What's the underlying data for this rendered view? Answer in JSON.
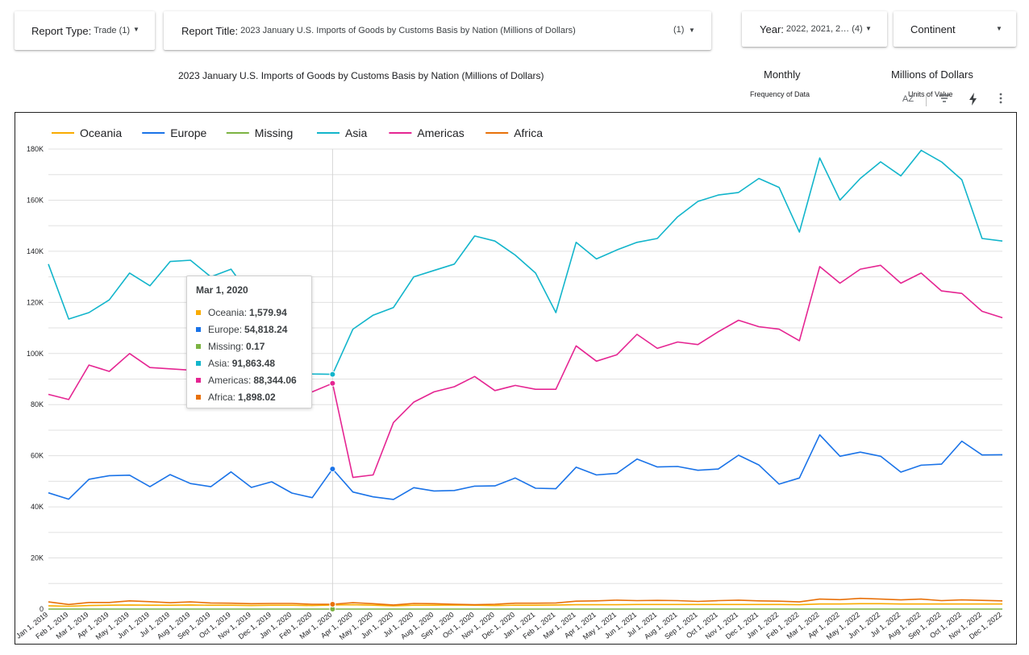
{
  "controls": {
    "report_type": {
      "label": "Report Type:",
      "value": "Trade (1)"
    },
    "report_title": {
      "label": "Report Title:",
      "value": "2023 January U.S. Imports of Goods by Customs Basis by Nation (Millions of Dollars)",
      "count": "(1)"
    },
    "year": {
      "label": "Year:",
      "value": "2022, 2021, 2…",
      "count": "(4)"
    },
    "continent": {
      "label": "Continent"
    }
  },
  "header": {
    "title": "2023 January U.S. Imports of Goods by Customs Basis by Nation (Millions of Dollars)",
    "frequency_value": "Monthly",
    "frequency_label": "Frequency of Data",
    "units_value": "Millions of Dollars",
    "units_label": "Units of Value",
    "sort_icon_text": "AZ"
  },
  "tooltip": {
    "title": "Mar 1, 2020",
    "rows": [
      {
        "name": "Oceania:",
        "value": "1,579.94",
        "color": "#f9ab00"
      },
      {
        "name": "Europe:",
        "value": "54,818.24",
        "color": "#1a73e8"
      },
      {
        "name": "Missing:",
        "value": "0.17",
        "color": "#7cb342"
      },
      {
        "name": "Asia:",
        "value": "91,863.48",
        "color": "#12b5cb"
      },
      {
        "name": "Americas:",
        "value": "88,344.06",
        "color": "#e52592"
      },
      {
        "name": "Africa:",
        "value": "1,898.02",
        "color": "#e8710a"
      }
    ]
  },
  "chart_data": {
    "type": "line",
    "legend_position": "top-left",
    "grid": true,
    "ylim": [
      0,
      180000
    ],
    "yticks": [
      "0",
      "20K",
      "40K",
      "60K",
      "80K",
      "100K",
      "120K",
      "140K",
      "160K",
      "180K"
    ],
    "x": [
      "Jan 1, 2019",
      "Feb 1, 2019",
      "Mar 1, 2019",
      "Apr 1, 2019",
      "May 1, 2019",
      "Jun 1, 2019",
      "Jul 1, 2019",
      "Aug 1, 2019",
      "Sep 1, 2019",
      "Oct 1, 2019",
      "Nov 1, 2019",
      "Dec 1, 2019",
      "Jan 1, 2020",
      "Feb 1, 2020",
      "Mar 1, 2020",
      "Apr 1, 2020",
      "May 1, 2020",
      "Jun 1, 2020",
      "Jul 1, 2020",
      "Aug 1, 2020",
      "Sep 1, 2020",
      "Oct 1, 2020",
      "Nov 1, 2020",
      "Dec 1, 2020",
      "Jan 1, 2021",
      "Feb 1, 2021",
      "Mar 1, 2021",
      "Apr 1, 2021",
      "May 1, 2021",
      "Jun 1, 2021",
      "Jul 1, 2021",
      "Aug 1, 2021",
      "Sep 1, 2021",
      "Oct 1, 2021",
      "Nov 1, 2021",
      "Dec 1, 2021",
      "Jan 1, 2022",
      "Feb 1, 2022",
      "Mar 1, 2022",
      "Apr 1, 2022",
      "May 1, 2022",
      "Jun 1, 2022",
      "Jul 1, 2022",
      "Aug 1, 2022",
      "Sep 1, 2022",
      "Oct 1, 2022",
      "Nov 1, 2022",
      "Dec 1, 2022"
    ],
    "series": [
      {
        "name": "Oceania",
        "color": "#f9ab00",
        "values": [
          1300,
          1100,
          1400,
          1500,
          1600,
          1500,
          1500,
          1600,
          1500,
          1500,
          1400,
          1500,
          1500,
          1400,
          1580,
          1700,
          1500,
          1300,
          1500,
          1500,
          1600,
          1500,
          1400,
          1500,
          1500,
          1600,
          1700,
          1700,
          1700,
          1800,
          1800,
          1800,
          1800,
          1800,
          1800,
          1800,
          1800,
          1700,
          2000,
          2000,
          2100,
          2100,
          2000,
          2000,
          2000,
          2000,
          2000,
          2000
        ]
      },
      {
        "name": "Europe",
        "color": "#1a73e8",
        "values": [
          45500,
          43000,
          50800,
          52200,
          52400,
          47900,
          52600,
          49100,
          47900,
          53700,
          47600,
          49800,
          45400,
          43600,
          54818,
          45800,
          43900,
          42900,
          47500,
          46200,
          46400,
          48100,
          48200,
          51300,
          47300,
          47100,
          55500,
          52500,
          53100,
          58700,
          55600,
          55800,
          54300,
          54800,
          60200,
          56400,
          48900,
          51300,
          68200,
          59800,
          61400,
          59800,
          53600,
          56300,
          56700,
          65700,
          60300,
          60400
        ]
      },
      {
        "name": "Missing",
        "color": "#7cb342",
        "values": [
          0,
          0,
          0,
          0,
          0,
          0,
          0,
          0,
          0,
          0,
          0,
          0,
          0,
          0,
          0.17,
          0,
          0,
          0,
          0,
          0,
          0,
          0,
          0,
          0,
          0,
          0,
          0,
          0,
          0,
          0,
          0,
          0,
          0,
          0,
          0,
          0,
          0,
          0,
          0,
          0,
          0,
          0,
          0,
          0,
          0,
          0,
          0,
          0
        ]
      },
      {
        "name": "Asia",
        "color": "#12b5cb",
        "values": [
          135000,
          113500,
          116000,
          121000,
          131500,
          126500,
          136000,
          136500,
          130000,
          133000,
          122000,
          115000,
          93000,
          92000,
          91863,
          109500,
          115000,
          118000,
          130000,
          132500,
          135000,
          146000,
          144000,
          138500,
          131500,
          116000,
          143500,
          137000,
          140500,
          143500,
          145000,
          153500,
          159500,
          162000,
          163000,
          168500,
          165000,
          147500,
          176500,
          160000,
          168500,
          175000,
          169500,
          179500,
          175000,
          168000,
          145000,
          144000
        ]
      },
      {
        "name": "Americas",
        "color": "#e52592",
        "values": [
          84000,
          82000,
          95500,
          93000,
          100000,
          94500,
          94000,
          93500,
          93000,
          92000,
          91000,
          89000,
          86500,
          85000,
          88344,
          51500,
          52500,
          73000,
          81000,
          85000,
          87000,
          91000,
          85500,
          87500,
          86000,
          86000,
          103000,
          97000,
          99500,
          107500,
          102000,
          104500,
          103500,
          108500,
          113000,
          110500,
          109500,
          105000,
          134000,
          127500,
          133000,
          134500,
          127500,
          131500,
          124500,
          123500,
          116500,
          114000
        ]
      },
      {
        "name": "Africa",
        "color": "#e8710a",
        "values": [
          2800,
          1800,
          2600,
          2600,
          3200,
          2900,
          2500,
          2800,
          2400,
          2300,
          2100,
          2200,
          2200,
          1900,
          1898,
          2500,
          2100,
          1600,
          2200,
          2100,
          1900,
          1700,
          1900,
          2300,
          2300,
          2400,
          3100,
          3200,
          3500,
          3300,
          3400,
          3300,
          3000,
          3300,
          3500,
          3200,
          3100,
          2800,
          3900,
          3700,
          4200,
          3900,
          3600,
          3900,
          3300,
          3600,
          3400,
          3200
        ]
      }
    ]
  }
}
